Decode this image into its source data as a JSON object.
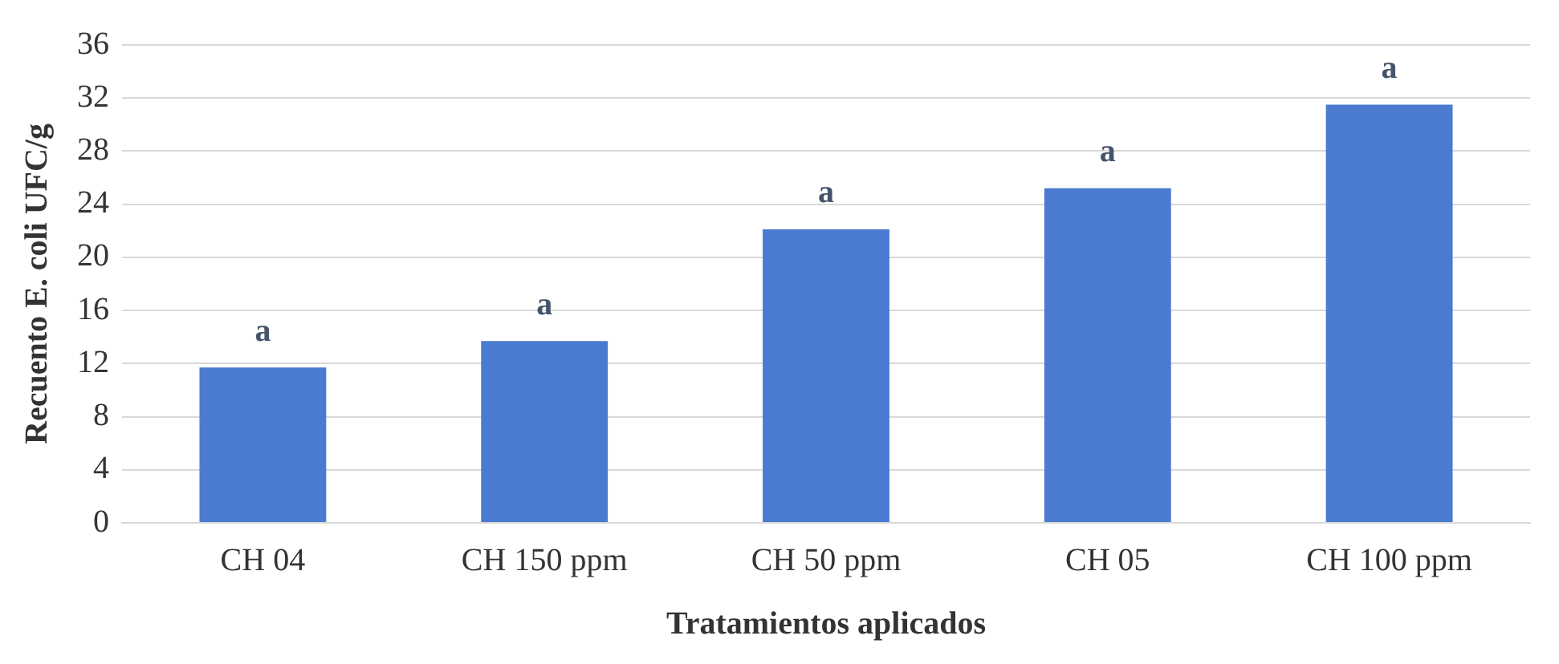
{
  "chart_data": {
    "type": "bar",
    "xlabel": "Tratamientos aplicados",
    "ylabel": "Recuento E. coli UFC/g",
    "categories": [
      "CH 04",
      "CH 150 ppm",
      "CH 50 ppm",
      "CH 05",
      "CH 100 ppm"
    ],
    "values": [
      11.7,
      13.7,
      22.1,
      25.2,
      31.5
    ],
    "color": "#4a7bd0",
    "ylim": [
      0,
      36
    ],
    "yticks": [
      0,
      4,
      8,
      12,
      16,
      20,
      24,
      28,
      32,
      36
    ],
    "grid": "y",
    "annotations": [
      {
        "text": "a",
        "x": "CH 04",
        "y": 11.7
      },
      {
        "text": "a",
        "x": "CH 150 ppm",
        "y": 13.7
      },
      {
        "text": "a",
        "x": "CH 50 ppm",
        "y": 22.1
      },
      {
        "text": "a",
        "x": "CH 05",
        "y": 25.2
      },
      {
        "text": "a",
        "x": "CH 100 ppm",
        "y": 31.5
      }
    ]
  }
}
